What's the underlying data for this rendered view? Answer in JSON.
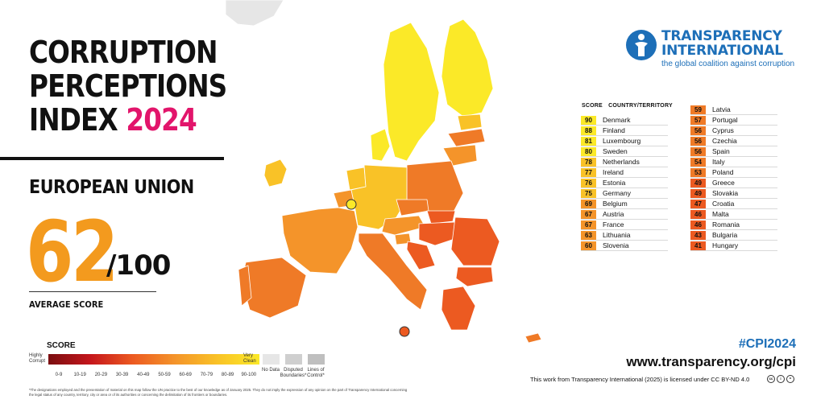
{
  "title": {
    "line1": "CORRUPTION",
    "line2": "PERCEPTIONS",
    "line3_prefix": "INDEX",
    "year": "2024"
  },
  "region": "EUROPEAN UNION",
  "average": {
    "score": "62",
    "denominator": "/100",
    "label": "AVERAGE SCORE"
  },
  "legend": {
    "title": "SCORE",
    "low_label": "Highly Corrupt",
    "high_label": "Very Clean",
    "ranges": [
      "0-9",
      "10-19",
      "20-29",
      "30-39",
      "40-49",
      "50-59",
      "60-69",
      "70-79",
      "80-89",
      "90-100"
    ],
    "no_data": "No Data",
    "disputed": "Disputed Boundaries*",
    "control": "Lines of Control*"
  },
  "disclaimer": "*The designations employed and the presentation of material on this map follow the UN practice to the best of our knowledge as of January 2025. They do not imply the expression of any opinion on the part of Transparency International concerning the legal status of any country, territory, city or area or of its authorities or concerning the delimitation of its frontiers or boundaries.",
  "logo": {
    "line1": "TRANSPARENCY",
    "line2": "INTERNATIONAL",
    "tagline": "the global coalition against corruption"
  },
  "table": {
    "score_header": "SCORE",
    "country_header": "COUNTRY/TERRITORY",
    "left": [
      {
        "score": "90",
        "country": "Denmark",
        "color": "#fbe928"
      },
      {
        "score": "88",
        "country": "Finland",
        "color": "#fbe928"
      },
      {
        "score": "81",
        "country": "Luxembourg",
        "color": "#fbe928"
      },
      {
        "score": "80",
        "country": "Sweden",
        "color": "#fbe928"
      },
      {
        "score": "78",
        "country": "Netherlands",
        "color": "#f9c227"
      },
      {
        "score": "77",
        "country": "Ireland",
        "color": "#f9c227"
      },
      {
        "score": "76",
        "country": "Estonia",
        "color": "#f9c227"
      },
      {
        "score": "75",
        "country": "Germany",
        "color": "#f9c227"
      },
      {
        "score": "69",
        "country": "Belgium",
        "color": "#f4942a"
      },
      {
        "score": "67",
        "country": "Austria",
        "color": "#f4942a"
      },
      {
        "score": "67",
        "country": "France",
        "color": "#f4942a"
      },
      {
        "score": "63",
        "country": "Lithuania",
        "color": "#f4942a"
      },
      {
        "score": "60",
        "country": "Slovenia",
        "color": "#f4942a"
      }
    ],
    "right": [
      {
        "score": "59",
        "country": "Latvia",
        "color": "#ef7a27"
      },
      {
        "score": "57",
        "country": "Portugal",
        "color": "#ef7a27"
      },
      {
        "score": "56",
        "country": "Cyprus",
        "color": "#ef7a27"
      },
      {
        "score": "56",
        "country": "Czechia",
        "color": "#ef7a27"
      },
      {
        "score": "56",
        "country": "Spain",
        "color": "#ef7a27"
      },
      {
        "score": "54",
        "country": "Italy",
        "color": "#ef7a27"
      },
      {
        "score": "53",
        "country": "Poland",
        "color": "#ef7a27"
      },
      {
        "score": "49",
        "country": "Greece",
        "color": "#ec5a21"
      },
      {
        "score": "49",
        "country": "Slovakia",
        "color": "#ec5a21"
      },
      {
        "score": "47",
        "country": "Croatia",
        "color": "#ec5a21"
      },
      {
        "score": "46",
        "country": "Malta",
        "color": "#ec5a21"
      },
      {
        "score": "46",
        "country": "Romania",
        "color": "#ec5a21"
      },
      {
        "score": "43",
        "country": "Bulgaria",
        "color": "#ec5a21"
      },
      {
        "score": "41",
        "country": "Hungary",
        "color": "#ec5a21"
      }
    ]
  },
  "hashtag": "#CPI2024",
  "website": "www.transparency.org/cpi",
  "license": "This work from Transparency International (2025) is licensed under CC BY-ND 4.0",
  "colors": {
    "accent_pink": "#e2156b",
    "score_orange": "#f39a1e",
    "brand_blue": "#1d6fb8"
  }
}
